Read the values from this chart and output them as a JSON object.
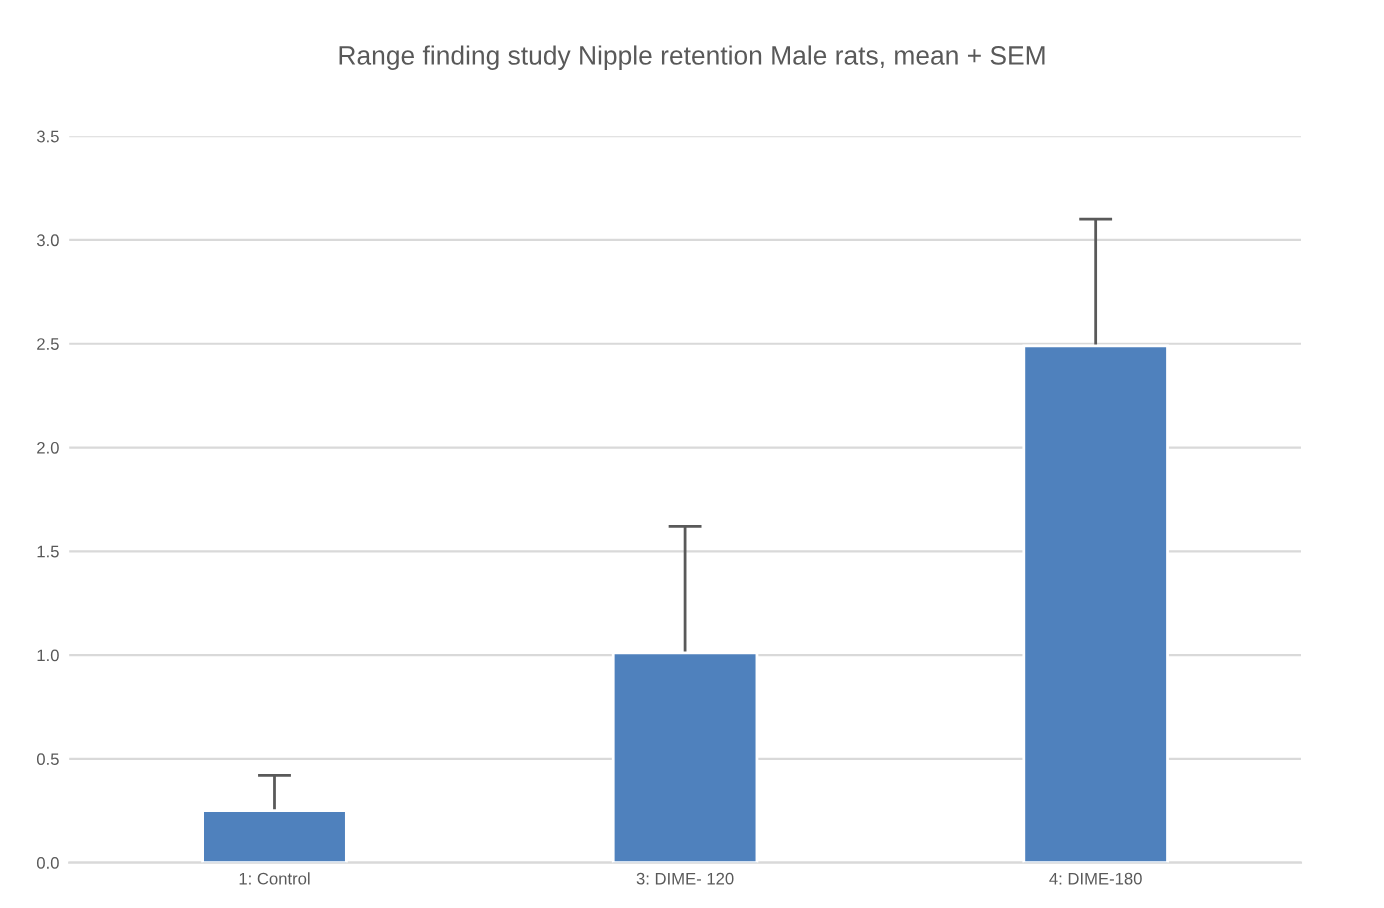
{
  "chart_data": {
    "type": "bar",
    "title": "Range finding study Nipple retention Male rats, mean + SEM",
    "categories": [
      "1: Control",
      "3: DIME- 120",
      "4: DIME-180"
    ],
    "values": [
      0.25,
      1.01,
      2.49
    ],
    "errors": [
      [
        0.25,
        0.42
      ],
      [
        1.01,
        1.62
      ],
      [
        2.49,
        3.1
      ]
    ],
    "color": "#4f81bd",
    "ylim": [
      0,
      3.5
    ],
    "yticks": [
      {
        "value": 0,
        "label": "0.0"
      },
      {
        "value": 0.5,
        "label": "0.5"
      },
      {
        "value": 1,
        "label": "1.0"
      },
      {
        "value": 1.5,
        "label": "1.5"
      },
      {
        "value": 2,
        "label": "2.0"
      },
      {
        "value": 2.5,
        "label": "2.5"
      },
      {
        "value": 3,
        "label": "3.0"
      },
      {
        "value": 3.5,
        "label": "3.5"
      }
    ],
    "grid": "y"
  }
}
